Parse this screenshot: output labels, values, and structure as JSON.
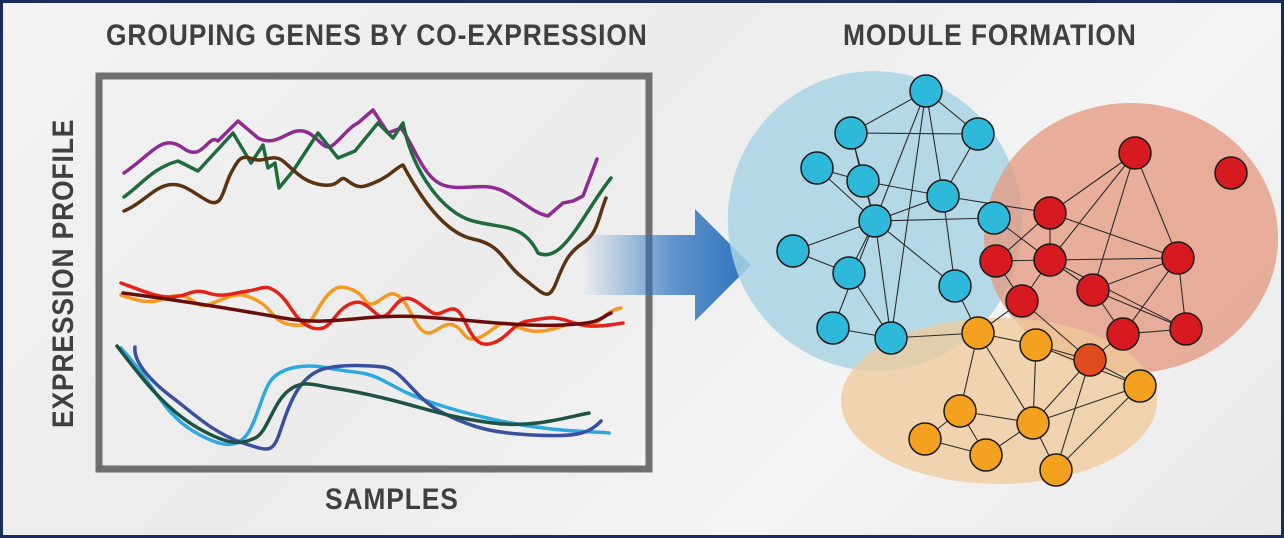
{
  "left_panel": {
    "title": "GROUPING GENES BY CO-EXPRESSION",
    "x_axis_label": "SAMPLES",
    "y_axis_label": "EXPRESSION PROFILE",
    "groups": [
      {
        "name": "upper",
        "colors": [
          "#8e2c91",
          "#1f6b3d",
          "#5a3311"
        ]
      },
      {
        "name": "middle",
        "colors": [
          "#f29a22",
          "#e2231a",
          "#6a0d0d"
        ]
      },
      {
        "name": "lower",
        "colors": [
          "#2ea8df",
          "#3a4f9e",
          "#1d5244"
        ]
      }
    ]
  },
  "right_panel": {
    "title": "MODULE FORMATION",
    "modules": [
      {
        "name": "blue",
        "fill": "#2eb8d9",
        "region": "#a9d3e3"
      },
      {
        "name": "red",
        "fill": "#d71920",
        "region": "#e49a82"
      },
      {
        "name": "orange",
        "fill": "#f4a11f",
        "region": "#efca98"
      }
    ]
  },
  "arrow": {
    "color": "#2e73bd"
  }
}
